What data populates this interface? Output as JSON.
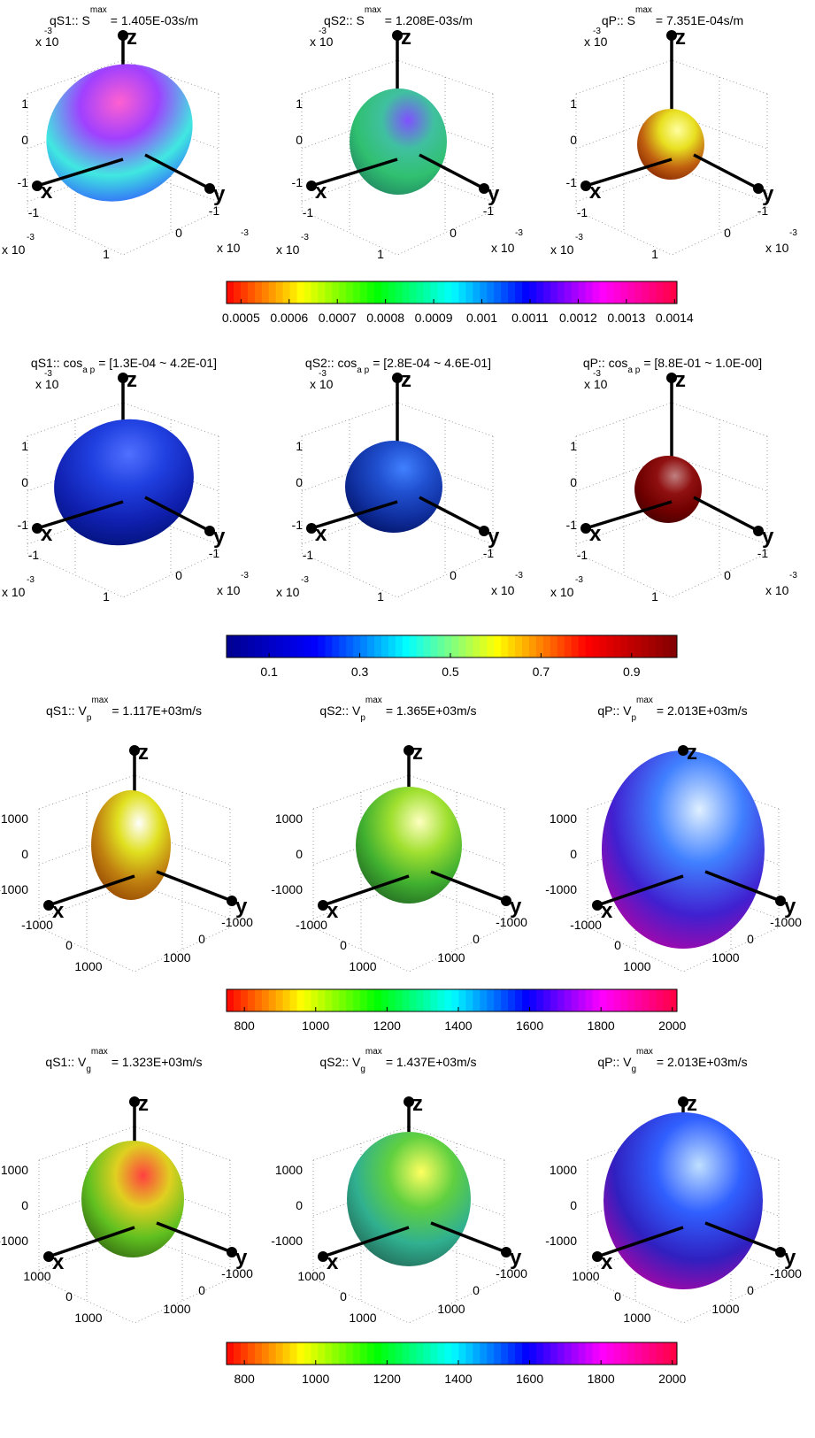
{
  "axis_letters": [
    "x",
    "y",
    "z"
  ],
  "rows": [
    {
      "panels": [
        {
          "title": {
            "prefix": "qS1:: S",
            "sup": "max",
            "suffix": "= 1.405E-03s/m"
          }
        },
        {
          "title": {
            "prefix": "qS2:: S",
            "sup": "max",
            "suffix": "= 1.208E-03s/m"
          }
        },
        {
          "title": {
            "prefix": "qP:: S",
            "sup": "max",
            "suffix": "= 7.351E-04s/m"
          }
        }
      ],
      "axis": {
        "exp": "x 10",
        "exp_sup": "-3",
        "z_ticks": [
          "1",
          "0",
          "-1"
        ],
        "x_ticks": [
          "-1",
          "1"
        ],
        "y_ticks": [
          "-1",
          "0"
        ]
      },
      "colorbar": {
        "lim": [
          0.00047,
          0.001405
        ],
        "ticks": [
          0.0005,
          0.0006,
          0.0007,
          0.0008,
          0.0009,
          0.001,
          0.0011,
          0.0012,
          0.0013,
          0.0014
        ],
        "colormap": [
          "#ff0000",
          "#ffff00",
          "#00ff00",
          "#00ffff",
          "#0000ff",
          "#ff00ff",
          "#ff0040"
        ]
      }
    },
    {
      "panels": [
        {
          "title": {
            "prefix": "qS1:: cos",
            "sub": "a p",
            "suffix": "= [1.3E-04 ~ 4.2E-01]"
          }
        },
        {
          "title": {
            "prefix": "qS2:: cos",
            "sub": "a p",
            "suffix": "= [2.8E-04 ~ 4.6E-01]"
          }
        },
        {
          "title": {
            "prefix": "qP:: cos",
            "sub": "a p",
            "suffix": "= [8.8E-01 ~ 1.0E-00]"
          }
        }
      ],
      "axis": {
        "exp": "x 10",
        "exp_sup": "-3",
        "z_ticks": [
          "1",
          "0",
          "-1"
        ],
        "x_ticks": [
          "-1",
          "1"
        ],
        "y_ticks": [
          "-1",
          "0"
        ]
      },
      "colorbar": {
        "lim": [
          0.006,
          1.0
        ],
        "ticks": [
          0.1,
          0.3,
          0.5,
          0.7,
          0.9
        ],
        "colormap": [
          "#00008f",
          "#0000ff",
          "#00ffff",
          "#ffff00",
          "#ff0000",
          "#800000"
        ]
      }
    },
    {
      "panels": [
        {
          "title": {
            "prefix": "qS1:: V",
            "sub": "p",
            "sup": "max",
            "suffix": "= 1.117E+03m/s"
          }
        },
        {
          "title": {
            "prefix": "qS2:: V",
            "sub": "p",
            "sup": "max",
            "suffix": "= 1.365E+03m/s"
          }
        },
        {
          "title": {
            "prefix": "qP:: V",
            "sub": "p",
            "sup": "max",
            "suffix": "= 2.013E+03m/s"
          }
        }
      ],
      "axis": {
        "z_ticks": [
          "1000",
          "0",
          "-1000"
        ],
        "x_ticks": [
          "-1000",
          "0",
          "1000"
        ],
        "y_ticks": [
          "-1000",
          "0",
          "1000"
        ]
      },
      "colorbar": {
        "lim": [
          750,
          2013
        ],
        "ticks": [
          800,
          1000,
          1200,
          1400,
          1600,
          1800,
          2000
        ],
        "colormap": [
          "#ff0000",
          "#ffff00",
          "#00ff00",
          "#00ffff",
          "#0000ff",
          "#ff00ff",
          "#ff0040"
        ]
      }
    },
    {
      "panels": [
        {
          "title": {
            "prefix": "qS1:: V",
            "sub": "g",
            "sup": "max",
            "suffix": "= 1.323E+03m/s"
          }
        },
        {
          "title": {
            "prefix": "qS2:: V",
            "sub": "g",
            "sup": "max",
            "suffix": "= 1.437E+03m/s"
          }
        },
        {
          "title": {
            "prefix": "qP:: V",
            "sub": "g",
            "sup": "max",
            "suffix": "= 2.013E+03m/s"
          }
        }
      ],
      "axis": {
        "z_ticks": [
          "1000",
          "0",
          "-1000"
        ],
        "x_ticks": [
          "1000",
          "0",
          "1000"
        ],
        "y_ticks": [
          "-1000",
          "0",
          "1000"
        ]
      },
      "colorbar": {
        "lim": [
          750,
          2013
        ],
        "ticks": [
          800,
          1000,
          1200,
          1400,
          1600,
          1800,
          2000
        ],
        "colormap": [
          "#ff0000",
          "#ffff00",
          "#00ff00",
          "#00ffff",
          "#0000ff",
          "#ff00ff",
          "#ff0040"
        ]
      }
    }
  ]
}
